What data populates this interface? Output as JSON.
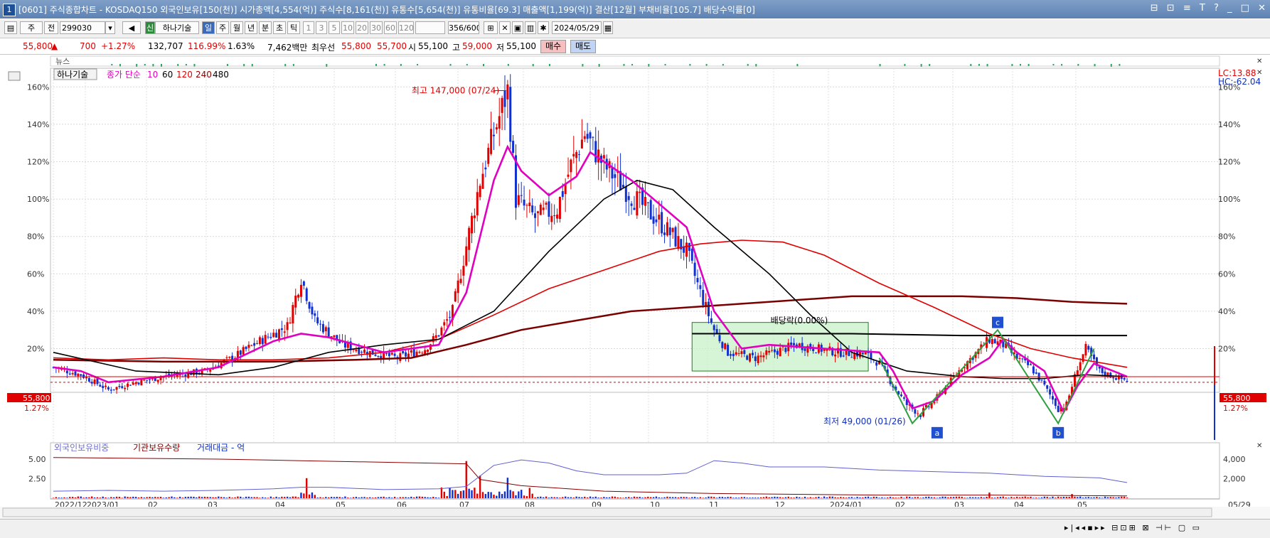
{
  "window": {
    "number": "1",
    "title": "[0601] 주식종합차트 - KOSDAQ150 외국인보유[150(천)] 시가총액[4,554(억)] 주식수[8,161(천)] 유통수[5,654(천)] 유통비율[69.3] 매출액[1,199(억)] 결산[12월] 부채비율[105.7] 배당수익률[0]",
    "buttons": [
      "⊟",
      "⊡",
      "≡",
      "T",
      "?",
      "_",
      "□",
      "✕"
    ]
  },
  "toolbar": {
    "period_type": "주",
    "view": "전",
    "code": "299030",
    "name": "하나기술",
    "name_badge": "신",
    "periods": [
      "일",
      "주",
      "월",
      "년",
      "분",
      "초",
      "틱"
    ],
    "selected_period": "일",
    "intervals": [
      "1",
      "3",
      "5",
      "10",
      "20",
      "30",
      "60",
      "120"
    ],
    "count": "356/600",
    "date": "2024/05/29"
  },
  "quote": {
    "price": "55,800",
    "change_arrow": "▲",
    "change": "700",
    "change_rate": "+1.27%",
    "volume": "132,707",
    "vol_ratio": "116.99%",
    "turnover": "1.63%",
    "amount": "7,462백만",
    "best_label": "최우선",
    "ask": "55,800",
    "bid": "55,700",
    "open_label": "시",
    "open": "55,100",
    "high_label": "고",
    "high": "59,000",
    "low_label": "저",
    "low": "55,100",
    "buy_label": "매수",
    "sell_label": "매도"
  },
  "news_label": "뉴스",
  "legend": {
    "name": "하나기술",
    "ma_label": "종가 단순",
    "ma_periods": [
      "10",
      "60",
      "120",
      "240",
      "480"
    ],
    "ma_colors": [
      "#e000c0",
      "#000000",
      "#e00000",
      "#8b0000",
      "#000000"
    ]
  },
  "lc_label": "LC:13.88",
  "hc_label": "HC:-62.04",
  "right_price_label": "55,800",
  "right_rate_label": "1.27%",
  "left_price_label": "55,800",
  "left_rate_label": "1.27%",
  "colors": {
    "up": "#e00000",
    "down": "#1030d0",
    "ma10": "#e000c0",
    "ma60": "#000000",
    "ma120": "#e00000",
    "ma240": "#7a0000",
    "pattern": "#2fa040",
    "box_fill": "#c8f0c8"
  },
  "chart_data": [
    {
      "type": "candlestick",
      "x_tick_labels": [
        "2022/12",
        "2023/01",
        "02",
        "03",
        "04",
        "05",
        "06",
        "07",
        "08",
        "09",
        "10",
        "11",
        "12",
        "2024/01",
        "02",
        "03",
        "04",
        "05",
        "05/29"
      ],
      "y_axis": {
        "tick_labels": [
          "160%",
          "140%",
          "120%",
          "100%",
          "80%",
          "60%",
          "40%",
          "20%"
        ],
        "ylim": [
          -30,
          170
        ]
      },
      "rate_path": [
        [
          0,
          10
        ],
        [
          10,
          6
        ],
        [
          20,
          -2
        ],
        [
          30,
          2
        ],
        [
          40,
          5
        ],
        [
          55,
          8
        ],
        [
          65,
          15
        ],
        [
          75,
          24
        ],
        [
          85,
          32
        ],
        [
          90,
          58
        ],
        [
          95,
          35
        ],
        [
          105,
          22
        ],
        [
          115,
          18
        ],
        [
          125,
          15
        ],
        [
          135,
          20
        ],
        [
          140,
          28
        ],
        [
          145,
          40
        ],
        [
          150,
          75
        ],
        [
          155,
          110
        ],
        [
          160,
          135
        ],
        [
          165,
          158
        ],
        [
          168,
          100
        ],
        [
          175,
          90
        ],
        [
          183,
          95
        ],
        [
          188,
          118
        ],
        [
          193,
          135
        ],
        [
          200,
          118
        ],
        [
          210,
          102
        ],
        [
          220,
          88
        ],
        [
          230,
          72
        ],
        [
          235,
          50
        ],
        [
          240,
          30
        ],
        [
          245,
          18
        ],
        [
          255,
          15
        ],
        [
          270,
          22
        ],
        [
          285,
          18
        ],
        [
          295,
          17
        ],
        [
          300,
          12
        ],
        [
          305,
          0
        ],
        [
          310,
          -10
        ],
        [
          315,
          -15
        ],
        [
          320,
          -8
        ],
        [
          330,
          10
        ],
        [
          340,
          25
        ],
        [
          345,
          22
        ],
        [
          350,
          15
        ],
        [
          355,
          10
        ],
        [
          360,
          0
        ],
        [
          365,
          -12
        ],
        [
          368,
          -10
        ],
        [
          372,
          10
        ],
        [
          375,
          20
        ],
        [
          380,
          8
        ],
        [
          385,
          5
        ],
        [
          390,
          3
        ]
      ],
      "ma10": [
        [
          0,
          10
        ],
        [
          10,
          8
        ],
        [
          20,
          2
        ],
        [
          40,
          5
        ],
        [
          60,
          10
        ],
        [
          80,
          24
        ],
        [
          90,
          28
        ],
        [
          100,
          26
        ],
        [
          120,
          18
        ],
        [
          140,
          22
        ],
        [
          150,
          50
        ],
        [
          160,
          110
        ],
        [
          165,
          128
        ],
        [
          170,
          115
        ],
        [
          180,
          102
        ],
        [
          190,
          112
        ],
        [
          195,
          125
        ],
        [
          210,
          110
        ],
        [
          230,
          85
        ],
        [
          240,
          40
        ],
        [
          250,
          20
        ],
        [
          260,
          22
        ],
        [
          280,
          20
        ],
        [
          300,
          18
        ],
        [
          305,
          8
        ],
        [
          312,
          -12
        ],
        [
          320,
          -8
        ],
        [
          330,
          6
        ],
        [
          340,
          15
        ],
        [
          345,
          25
        ],
        [
          350,
          18
        ],
        [
          360,
          8
        ],
        [
          367,
          -14
        ],
        [
          372,
          0
        ],
        [
          378,
          12
        ],
        [
          385,
          8
        ],
        [
          390,
          5
        ]
      ],
      "ma60": [
        [
          0,
          18
        ],
        [
          30,
          8
        ],
        [
          60,
          6
        ],
        [
          80,
          10
        ],
        [
          100,
          18
        ],
        [
          120,
          22
        ],
        [
          140,
          25
        ],
        [
          160,
          40
        ],
        [
          180,
          72
        ],
        [
          200,
          100
        ],
        [
          212,
          110
        ],
        [
          225,
          105
        ],
        [
          240,
          85
        ],
        [
          260,
          60
        ],
        [
          275,
          38
        ],
        [
          290,
          18
        ],
        [
          310,
          8
        ],
        [
          330,
          5
        ],
        [
          345,
          4
        ],
        [
          360,
          4
        ],
        [
          375,
          6
        ],
        [
          390,
          5
        ]
      ],
      "ma120": [
        [
          0,
          15
        ],
        [
          20,
          14
        ],
        [
          40,
          15
        ],
        [
          60,
          14
        ],
        [
          80,
          14
        ],
        [
          100,
          15
        ],
        [
          120,
          18
        ],
        [
          140,
          25
        ],
        [
          160,
          38
        ],
        [
          180,
          52
        ],
        [
          200,
          62
        ],
        [
          220,
          72
        ],
        [
          235,
          76
        ],
        [
          250,
          78
        ],
        [
          265,
          77
        ],
        [
          280,
          70
        ],
        [
          300,
          55
        ],
        [
          320,
          42
        ],
        [
          340,
          28
        ],
        [
          355,
          20
        ],
        [
          370,
          15
        ],
        [
          390,
          10
        ]
      ],
      "ma240": [
        [
          0,
          14
        ],
        [
          40,
          13
        ],
        [
          80,
          13
        ],
        [
          110,
          14
        ],
        [
          130,
          15
        ],
        [
          150,
          22
        ],
        [
          170,
          30
        ],
        [
          190,
          35
        ],
        [
          210,
          40
        ],
        [
          230,
          42
        ],
        [
          250,
          44
        ],
        [
          270,
          46
        ],
        [
          290,
          48
        ],
        [
          310,
          48
        ],
        [
          330,
          48
        ],
        [
          350,
          47
        ],
        [
          370,
          45
        ],
        [
          390,
          44
        ]
      ],
      "ma480": [
        [
          232,
          28
        ],
        [
          250,
          28
        ],
        [
          290,
          28
        ],
        [
          330,
          27
        ],
        [
          360,
          27
        ],
        [
          390,
          27
        ]
      ],
      "annotations": [
        {
          "text": "최고 147,000 (07/24)",
          "color": "#e00000"
        },
        {
          "text": "최저 49,000 (01/26)",
          "color": "#1030c0"
        },
        {
          "text": "배당락(0.00%)",
          "color": "#000000"
        },
        {
          "text": "a"
        },
        {
          "text": "b"
        },
        {
          "text": "c"
        }
      ],
      "box_range": {
        "x": [
          232,
          296
        ],
        "y": [
          8,
          34
        ]
      },
      "pattern_lines": [
        [
          [
            300,
            15
          ],
          [
            312,
            -20
          ],
          [
            343,
            30
          ],
          [
            365,
            -20
          ],
          [
            378,
            20
          ]
        ]
      ],
      "horizontal_line": 5,
      "dashed_line": 2
    },
    {
      "type": "bar",
      "legend": [
        "외국인보유비중",
        "기관보유수량",
        "거래대금 - 억"
      ],
      "left_tick_labels": [
        "5.00",
        "2.50"
      ],
      "right_tick_labels": [
        "4,000",
        "2,000"
      ],
      "foreign_ratio": [
        [
          0,
          0.9
        ],
        [
          20,
          1.0
        ],
        [
          40,
          0.9
        ],
        [
          60,
          1.0
        ],
        [
          80,
          1.2
        ],
        [
          90,
          1.4
        ],
        [
          100,
          1.4
        ],
        [
          120,
          1.1
        ],
        [
          140,
          1.2
        ],
        [
          150,
          1.5
        ],
        [
          160,
          4.2
        ],
        [
          170,
          4.9
        ],
        [
          180,
          4.5
        ],
        [
          190,
          3.5
        ],
        [
          200,
          3.0
        ],
        [
          220,
          3.0
        ],
        [
          230,
          3.2
        ],
        [
          240,
          4.8
        ],
        [
          250,
          4.5
        ],
        [
          260,
          4.0
        ],
        [
          280,
          4.0
        ],
        [
          300,
          3.6
        ],
        [
          320,
          3.4
        ],
        [
          340,
          3.2
        ],
        [
          360,
          2.8
        ],
        [
          380,
          2.6
        ],
        [
          390,
          2.0
        ]
      ],
      "institution": [
        [
          0,
          5.2
        ],
        [
          60,
          5.0
        ],
        [
          90,
          4.8
        ],
        [
          120,
          4.6
        ],
        [
          150,
          4.4
        ],
        [
          155,
          2.4
        ],
        [
          170,
          1.6
        ],
        [
          200,
          0.9
        ],
        [
          240,
          0.6
        ],
        [
          300,
          0.4
        ],
        [
          340,
          0.4
        ],
        [
          390,
          0.3
        ]
      ],
      "amount_spikes": [
        [
          92,
          2050
        ],
        [
          150,
          3800
        ],
        [
          155,
          2300
        ],
        [
          165,
          2100
        ],
        [
          340,
          580
        ],
        [
          370,
          430
        ]
      ]
    }
  ]
}
